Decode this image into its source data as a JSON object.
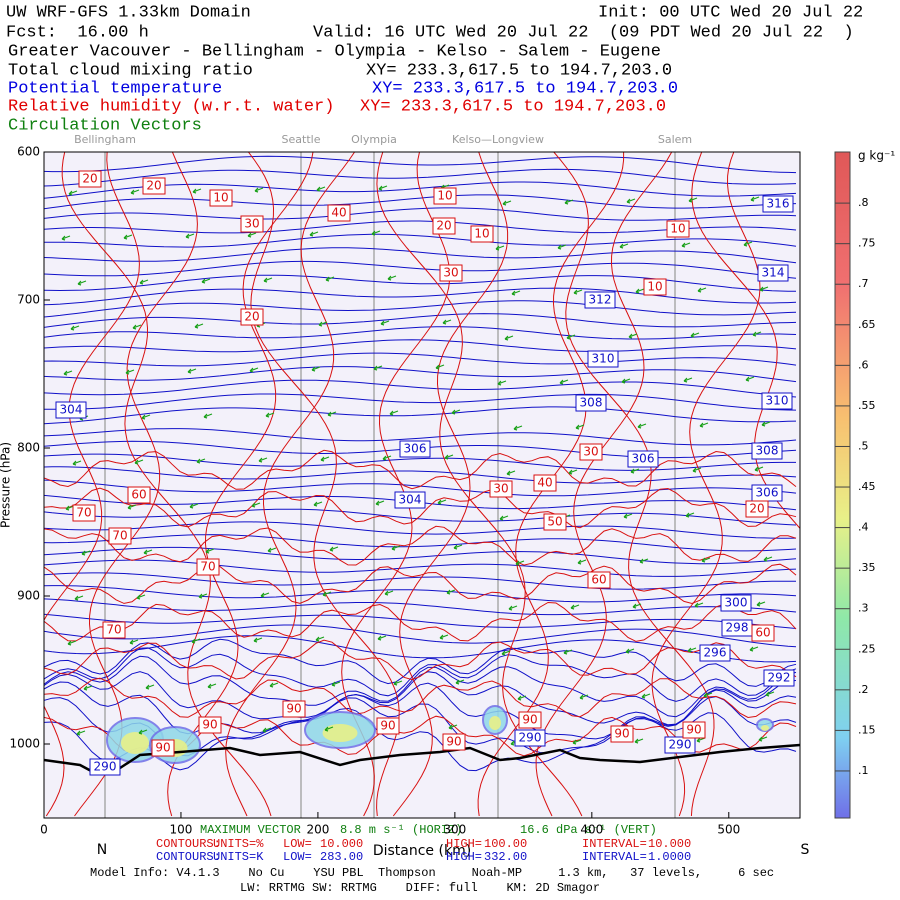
{
  "header": {
    "title": "UW WRF-GFS 1.33km Domain",
    "init": "Init: 00 UTC Wed 20 Jul 22",
    "fcst": "Fcst:  16.00 h",
    "valid": "Valid: 16 UTC Wed 20 Jul 22  (09 PDT Wed 20 Jul 22  )",
    "region": "Greater Vacouver - Bellingham - Olympia - Kelso - Salem - Eugene",
    "field1": "Total cloud mixing ratio",
    "xy1": "XY= 233.3,617.5 to 194.7,203.0",
    "field2": "Potential temperature",
    "xy2": "XY= 233.3,617.5 to 194.7,203.0",
    "field3": "Relative humidity (w.r.t. water)",
    "xy3": "XY= 233.3,617.5 to 194.7,203.0",
    "field4": "Circulation Vectors"
  },
  "chart_data": {
    "type": "cross-section",
    "xlabel": "Distance (km)",
    "ylabel": "Pressure (hPa)",
    "xlim": [
      0,
      552
    ],
    "xticks": [
      0,
      100,
      200,
      300,
      400,
      500
    ],
    "ylim": [
      1050,
      600
    ],
    "yticks": [
      600,
      700,
      800,
      900,
      1000
    ],
    "ends": [
      "N",
      "S"
    ],
    "locations": [
      "Bellingham",
      "Seattle",
      "Olympia",
      "Kelso—Longview",
      "Salem"
    ],
    "theta_labels": [
      316,
      314,
      312,
      310,
      310,
      308,
      308,
      306,
      306,
      306,
      304,
      304,
      300,
      298,
      296,
      292,
      290,
      290,
      290
    ],
    "rh_labels": [
      20,
      20,
      10,
      30,
      40,
      10,
      20,
      10,
      10,
      30,
      10,
      20,
      30,
      40,
      30,
      50,
      20,
      60,
      70,
      70,
      70,
      60,
      70,
      60,
      90,
      90,
      90,
      90,
      90,
      90,
      90,
      90
    ],
    "colorbar": {
      "unit": "g kg⁻¹",
      "clim": [
        0.042,
        0.863
      ],
      "ticks": [
        {
          "value": 0.1,
          "label": ".1"
        },
        {
          "value": 0.15,
          "label": ".15"
        },
        {
          "value": 0.2,
          "label": ".2"
        },
        {
          "value": 0.25,
          "label": ".25"
        },
        {
          "value": 0.3,
          "label": ".3"
        },
        {
          "value": 0.35,
          "label": ".35"
        },
        {
          "value": 0.4,
          "label": ".4"
        },
        {
          "value": 0.45,
          "label": ".45"
        },
        {
          "value": 0.5,
          "label": ".5"
        },
        {
          "value": 0.55,
          "label": ".55"
        },
        {
          "value": 0.6,
          "label": ".6"
        },
        {
          "value": 0.65,
          "label": ".65"
        },
        {
          "value": 0.7,
          "label": ".7"
        },
        {
          "value": 0.75,
          "label": ".75"
        },
        {
          "value": 0.8,
          "label": ".8"
        }
      ]
    }
  },
  "footer": {
    "vector_title": "MAXIMUM VECTOR",
    "horiz": "8.8 m s⁻¹ (HORIZ)",
    "vert": "16.6 dPa s⁻¹ (VERT)",
    "rh_contours": [
      "CONTOURS:",
      "UNITS=%",
      "LOW=",
      "10.000",
      "HIGH=",
      "100.00",
      "INTERVAL=",
      "10.000"
    ],
    "theta_contours": [
      "CONTOURS:",
      "UNITS=K",
      "LOW=",
      "283.00",
      "HIGH=",
      "332.00",
      "INTERVAL=",
      "1.0000"
    ],
    "model_info": "Model Info: V4.1.3    No Cu    YSU PBL  Thompson     Noah-MP     1.3 km,   37 levels,     6 sec",
    "physics": "LW: RRTMG SW: RRTMG    DIFF: full    KM: 2D Smagor"
  }
}
